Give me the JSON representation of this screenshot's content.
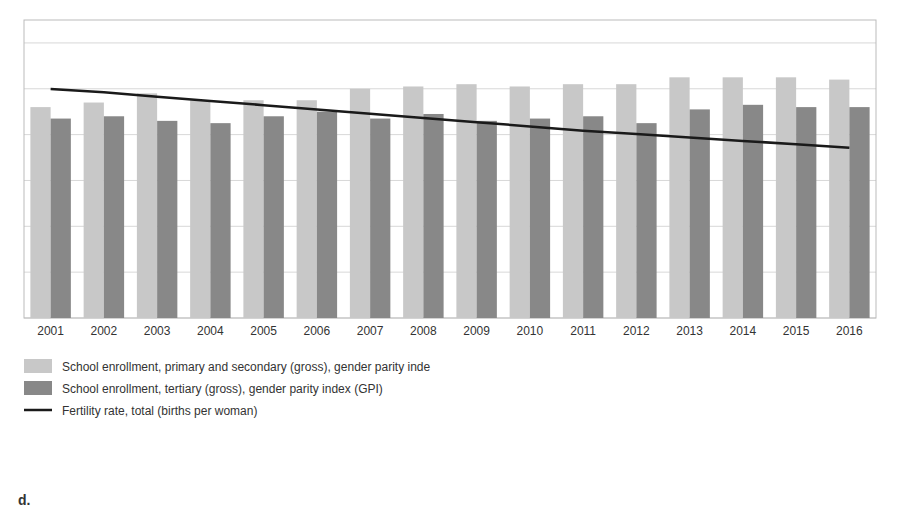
{
  "chart_data": {
    "type": "bar",
    "categories": [
      "2001",
      "2002",
      "2003",
      "2004",
      "2005",
      "2006",
      "2007",
      "2008",
      "2009",
      "2010",
      "2011",
      "2012",
      "2013",
      "2014",
      "2015",
      "2016"
    ],
    "series": [
      {
        "name": "School enrollment, primary and secondary (gross), gender parity inde",
        "type": "bar",
        "color": "#c8c8c8",
        "values": [
          0.92,
          0.94,
          0.98,
          0.95,
          0.95,
          0.95,
          1.0,
          1.01,
          1.02,
          1.01,
          1.02,
          1.02,
          1.05,
          1.05,
          1.05,
          1.04
        ]
      },
      {
        "name": "School enrollment, tertiary (gross), gender parity index (GPI)",
        "type": "bar",
        "color": "#888888",
        "values": [
          0.87,
          0.88,
          0.86,
          0.85,
          0.88,
          0.9,
          0.87,
          0.89,
          0.86,
          0.87,
          0.88,
          0.85,
          0.91,
          0.93,
          0.92,
          0.92
        ]
      },
      {
        "name": "Fertility rate, total (births per woman)",
        "type": "line",
        "axis": "y2",
        "color": "#1a1a1a",
        "values": [
          2.69,
          2.65,
          2.6,
          2.55,
          2.5,
          2.45,
          2.4,
          2.35,
          2.3,
          2.25,
          2.2,
          2.16,
          2.12,
          2.08,
          2.04,
          2.0
        ]
      }
    ],
    "ylim": [
      0,
      1.3
    ],
    "yticks": [
      0.0,
      0.2,
      0.4,
      0.6,
      0.8,
      1.0,
      1.2
    ],
    "y2lim": [
      0,
      3.5
    ],
    "y2ticks": [],
    "grid": true,
    "tick_labels": "x",
    "legend": "bottom",
    "annotations": [
      "d."
    ]
  }
}
